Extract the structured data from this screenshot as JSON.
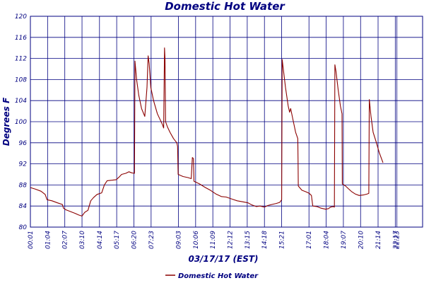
{
  "chart_data": {
    "type": "line",
    "title": "Domestic Hot Water",
    "xlabel": "03/17/17 (EST)",
    "ylabel": "Degrees F",
    "ylim": [
      80,
      120
    ],
    "yticks": [
      80,
      84,
      88,
      92,
      96,
      100,
      104,
      108,
      112,
      116,
      120
    ],
    "xlim": [
      1,
      1437
    ],
    "xticks": [
      {
        "t": 1,
        "label": "00:01"
      },
      {
        "t": 64,
        "label": "01:04"
      },
      {
        "t": 127,
        "label": "02:07"
      },
      {
        "t": 190,
        "label": "03:10"
      },
      {
        "t": 254,
        "label": "04:14"
      },
      {
        "t": 317,
        "label": "05:17"
      },
      {
        "t": 380,
        "label": "06:20"
      },
      {
        "t": 443,
        "label": "07:23"
      },
      {
        "t": 543,
        "label": "09:03"
      },
      {
        "t": 606,
        "label": "10:06"
      },
      {
        "t": 669,
        "label": "11:09"
      },
      {
        "t": 732,
        "label": "12:12"
      },
      {
        "t": 795,
        "label": "13:15"
      },
      {
        "t": 858,
        "label": "14:18"
      },
      {
        "t": 921,
        "label": "15:21"
      },
      {
        "t": 1021,
        "label": "17:01"
      },
      {
        "t": 1084,
        "label": "18:04"
      },
      {
        "t": 1147,
        "label": "19:07"
      },
      {
        "t": 1210,
        "label": "20:10"
      },
      {
        "t": 1274,
        "label": "21:14"
      },
      {
        "t": 1337,
        "label": "22:17"
      },
      {
        "t": 1343,
        "label": "22:23"
      }
    ],
    "grid": true,
    "legend_position": "bottom",
    "series": [
      {
        "name": "Domestic Hot Water",
        "color": "#8b0000",
        "points": [
          [
            1,
            87.5
          ],
          [
            20,
            87.2
          ],
          [
            40,
            86.8
          ],
          [
            55,
            86.2
          ],
          [
            62,
            85.2
          ],
          [
            80,
            85.0
          ],
          [
            100,
            84.6
          ],
          [
            118,
            84.3
          ],
          [
            122,
            83.6
          ],
          [
            130,
            83.3
          ],
          [
            150,
            82.9
          ],
          [
            165,
            82.6
          ],
          [
            178,
            82.3
          ],
          [
            190,
            82.1
          ],
          [
            200,
            82.8
          ],
          [
            212,
            83.2
          ],
          [
            222,
            85.0
          ],
          [
            232,
            85.6
          ],
          [
            245,
            86.2
          ],
          [
            262,
            86.5
          ],
          [
            272,
            88.0
          ],
          [
            282,
            88.8
          ],
          [
            300,
            88.9
          ],
          [
            316,
            89.0
          ],
          [
            326,
            89.5
          ],
          [
            335,
            90.0
          ],
          [
            350,
            90.2
          ],
          [
            362,
            90.5
          ],
          [
            372,
            90.3
          ],
          [
            382,
            90.2
          ],
          [
            384,
            111.5
          ],
          [
            390,
            108.0
          ],
          [
            398,
            105.0
          ],
          [
            408,
            102.5
          ],
          [
            420,
            101.0
          ],
          [
            428,
            106.5
          ],
          [
            432,
            112.5
          ],
          [
            436,
            111.0
          ],
          [
            442,
            106.5
          ],
          [
            452,
            104.0
          ],
          [
            466,
            101.5
          ],
          [
            484,
            99.5
          ],
          [
            489,
            98.8
          ],
          [
            492,
            114.0
          ],
          [
            494,
            112.0
          ],
          [
            496,
            100.0
          ],
          [
            503,
            99.0
          ],
          [
            512,
            98.0
          ],
          [
            525,
            96.8
          ],
          [
            537,
            96.0
          ],
          [
            540,
            95.3
          ],
          [
            542,
            90.0
          ],
          [
            560,
            89.6
          ],
          [
            578,
            89.4
          ],
          [
            590,
            89.2
          ],
          [
            594,
            93.2
          ],
          [
            598,
            93.0
          ],
          [
            600,
            88.7
          ],
          [
            620,
            88.2
          ],
          [
            642,
            87.5
          ],
          [
            660,
            87.0
          ],
          [
            680,
            86.3
          ],
          [
            700,
            85.8
          ],
          [
            718,
            85.7
          ],
          [
            740,
            85.3
          ],
          [
            758,
            85.0
          ],
          [
            778,
            84.8
          ],
          [
            798,
            84.6
          ],
          [
            812,
            84.2
          ],
          [
            828,
            83.9
          ],
          [
            842,
            84.0
          ],
          [
            858,
            83.8
          ],
          [
            870,
            84.1
          ],
          [
            885,
            84.3
          ],
          [
            902,
            84.5
          ],
          [
            914,
            84.7
          ],
          [
            921,
            85.2
          ],
          [
            923,
            111.8
          ],
          [
            927,
            110.0
          ],
          [
            935,
            106.5
          ],
          [
            945,
            103.0
          ],
          [
            950,
            101.8
          ],
          [
            954,
            102.5
          ],
          [
            962,
            100.5
          ],
          [
            972,
            98.0
          ],
          [
            980,
            96.8
          ],
          [
            981,
            92.5
          ],
          [
            982,
            87.8
          ],
          [
            995,
            87.0
          ],
          [
            1010,
            86.7
          ],
          [
            1022,
            86.4
          ],
          [
            1030,
            86.0
          ],
          [
            1035,
            84.0
          ],
          [
            1050,
            83.9
          ],
          [
            1065,
            83.6
          ],
          [
            1082,
            83.4
          ],
          [
            1092,
            83.5
          ],
          [
            1100,
            83.8
          ],
          [
            1110,
            83.9
          ],
          [
            1114,
            83.8
          ],
          [
            1116,
            110.8
          ],
          [
            1120,
            109.5
          ],
          [
            1128,
            106.0
          ],
          [
            1136,
            103.0
          ],
          [
            1142,
            101.5
          ],
          [
            1143,
            88.2
          ],
          [
            1155,
            87.8
          ],
          [
            1165,
            87.3
          ],
          [
            1178,
            86.7
          ],
          [
            1190,
            86.3
          ],
          [
            1205,
            86.0
          ],
          [
            1220,
            86.1
          ],
          [
            1235,
            86.3
          ],
          [
            1240,
            86.4
          ],
          [
            1242,
            104.2
          ],
          [
            1248,
            101.0
          ],
          [
            1256,
            98.0
          ],
          [
            1268,
            96.0
          ],
          [
            1278,
            94.2
          ],
          [
            1292,
            92.2
          ]
        ]
      }
    ]
  }
}
